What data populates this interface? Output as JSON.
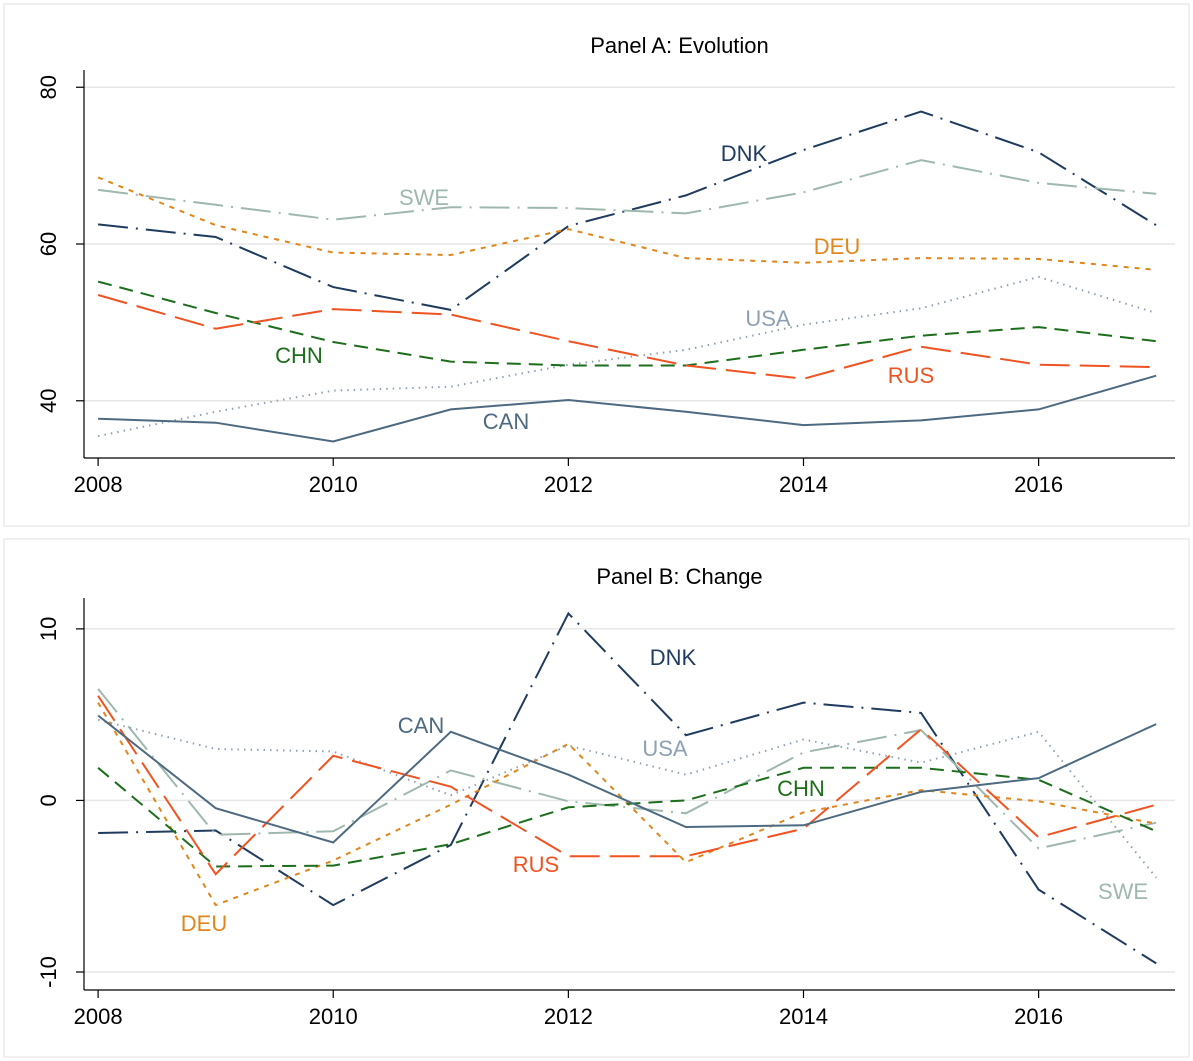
{
  "chart_data": [
    {
      "type": "line",
      "title": "Panel A: Evolution",
      "x": [
        2008,
        2009,
        2010,
        2011,
        2012,
        2013,
        2014,
        2015,
        2016,
        2017
      ],
      "xlim": [
        2007.88,
        2017.16
      ],
      "xticks": [
        2008,
        2010,
        2012,
        2014,
        2016
      ],
      "ylim": [
        32.7,
        82.2
      ],
      "yticks": [
        40,
        60,
        80
      ],
      "grid": true,
      "series": [
        {
          "name": "DNK",
          "color": "#1f3b5e",
          "dash": "longdash-dot",
          "values": [
            62.5,
            60.9,
            54.5,
            51.6,
            62.3,
            66.2,
            72.0,
            76.9,
            71.7,
            62.4
          ]
        },
        {
          "name": "SWE",
          "color": "#9fb8ae",
          "dash": "longdash-dot",
          "values": [
            66.9,
            65.0,
            63.1,
            64.7,
            64.6,
            63.9,
            66.6,
            70.7,
            67.8,
            66.4
          ]
        },
        {
          "name": "DEU",
          "color": "#e0861b",
          "dash": "shortdash",
          "values": [
            68.5,
            62.4,
            58.9,
            58.6,
            61.9,
            58.2,
            57.6,
            58.2,
            58.1,
            56.7
          ]
        },
        {
          "name": "USA",
          "color": "#8ea0b4",
          "dash": "dot",
          "values": [
            35.5,
            38.6,
            41.3,
            41.8,
            44.6,
            46.5,
            49.7,
            51.8,
            55.8,
            51.2
          ]
        },
        {
          "name": "CHN",
          "color": "#1c6e1c",
          "dash": "dash",
          "values": [
            55.2,
            51.2,
            47.5,
            45.0,
            44.5,
            44.5,
            46.5,
            48.3,
            49.4,
            47.6
          ]
        },
        {
          "name": "RUS",
          "color": "#ef5322",
          "dash": "longdash",
          "values": [
            53.5,
            49.2,
            51.7,
            51.0,
            47.6,
            44.5,
            42.8,
            46.9,
            44.6,
            44.3
          ]
        },
        {
          "name": "CAN",
          "color": "#4e6a80",
          "dash": "solid",
          "values": [
            37.7,
            37.2,
            34.8,
            38.9,
            40.1,
            38.6,
            36.9,
            37.5,
            38.9,
            43.2
          ]
        }
      ]
    },
    {
      "type": "line",
      "title": "Panel B: Change",
      "x": [
        2008,
        2009,
        2010,
        2011,
        2012,
        2013,
        2014,
        2015,
        2016,
        2017
      ],
      "xlim": [
        2007.88,
        2017.16
      ],
      "xticks": [
        2008,
        2010,
        2012,
        2014,
        2016
      ],
      "ylim": [
        -11.05,
        11.8
      ],
      "yticks": [
        -10,
        0,
        10
      ],
      "grid": true,
      "series": [
        {
          "name": "DNK",
          "color": "#1f3b5e",
          "dash": "longdash-dot",
          "values": [
            -1.9,
            -1.75,
            -6.1,
            -2.6,
            10.9,
            3.8,
            5.7,
            5.1,
            -5.2,
            -9.5
          ]
        },
        {
          "name": "SWE",
          "color": "#9fb8ae",
          "dash": "longdash-dot",
          "values": [
            6.5,
            -2.0,
            -1.8,
            1.75,
            -0.05,
            -0.75,
            2.8,
            4.1,
            -2.8,
            -1.3
          ]
        },
        {
          "name": "DEU",
          "color": "#e0861b",
          "dash": "shortdash",
          "values": [
            5.7,
            -6.1,
            -3.5,
            -0.25,
            3.3,
            -3.6,
            -0.7,
            0.6,
            -0.05,
            -1.35
          ]
        },
        {
          "name": "USA",
          "color": "#8ea0b4",
          "dash": "dot",
          "values": [
            4.7,
            3.0,
            2.85,
            0.3,
            3.2,
            1.5,
            3.55,
            2.2,
            4.0,
            -4.5
          ]
        },
        {
          "name": "CHN",
          "color": "#1c6e1c",
          "dash": "dash",
          "values": [
            1.9,
            -3.85,
            -3.8,
            -2.55,
            -0.4,
            0,
            1.9,
            1.9,
            1.2,
            -1.8
          ]
        },
        {
          "name": "RUS",
          "color": "#ef5322",
          "dash": "longdash",
          "values": [
            6.1,
            -4.3,
            2.6,
            0.8,
            -3.25,
            -3.25,
            -1.65,
            4.15,
            -2.15,
            -0.25
          ]
        },
        {
          "name": "CAN",
          "color": "#4e6a80",
          "dash": "solid",
          "values": [
            4.95,
            -0.45,
            -2.45,
            4.0,
            1.5,
            -1.55,
            -1.45,
            0.5,
            1.3,
            4.45
          ]
        }
      ]
    }
  ]
}
